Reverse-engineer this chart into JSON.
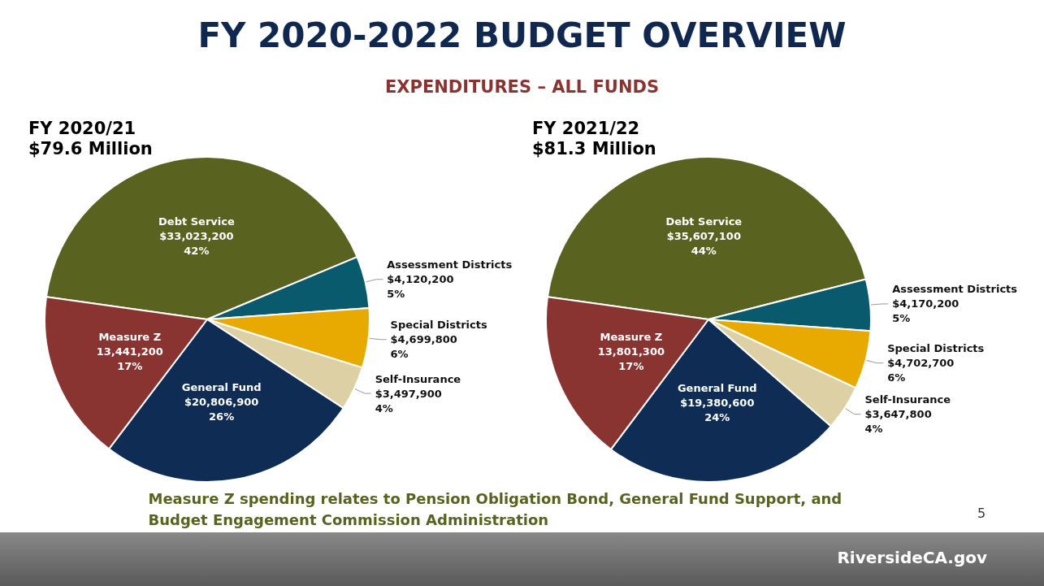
{
  "chart_data": [
    {
      "type": "other",
      "title": "FY 2020-2022 BUDGET OVERVIEW",
      "subtitle": "EXPENDITURES – ALL FUNDS",
      "annotations": [
        "Measure Z spending relates to Pension Obligation Bond, General Fund Support, and Budget Engagement Commission Administration",
        "5",
        "RiversideCA.gov"
      ]
    },
    {
      "type": "pie",
      "title": "FY 2020/21",
      "subtitle": "$79.6 Million",
      "categories": [
        "Debt Service",
        "Assessment Districts",
        "Special Districts",
        "Self-Insurance",
        "General Fund",
        "Measure Z"
      ],
      "values": [
        33023200,
        4120200,
        4699800,
        3497900,
        20806900,
        13441200
      ],
      "value_labels": [
        "$33,023,200\n42%",
        "$4,120,200\n5%",
        "$4,699,800\n6%",
        "$3,497,900\n4%",
        "$20,806,900\n26%",
        "13,441,200\n17%"
      ],
      "colors": [
        "#5a6220",
        "#0a5a6e",
        "#e8a900",
        "#ddd0a4",
        "#0f2c54",
        "#8a3431"
      ],
      "legend": false
    },
    {
      "type": "pie",
      "title": "FY 2021/22",
      "subtitle": "$81.3 Million",
      "categories": [
        "Debt Service",
        "Assessment Districts",
        "Special Districts",
        "Self-Insurance",
        "General Fund",
        "Measure Z"
      ],
      "values": [
        35607100,
        4170200,
        4702700,
        3647800,
        19380600,
        13801300
      ],
      "value_labels": [
        "$35,607,100\n44%",
        "$4,170,200\n5%",
        "$4,702,700\n6%",
        "$3,647,800\n4%",
        "$19,380,600\n24%",
        "13,801,300\n17%"
      ],
      "colors": [
        "#5a6220",
        "#0a5a6e",
        "#e8a900",
        "#ddd0a4",
        "#0f2c54",
        "#8a3431"
      ],
      "legend": false
    }
  ]
}
